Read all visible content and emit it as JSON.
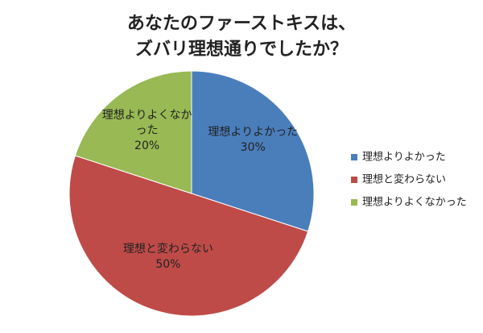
{
  "chart_data": {
    "type": "pie",
    "title": [
      "あなたのファーストキスは、",
      "ズバリ理想通りでしたか？"
    ],
    "categories": [
      "理想よりよかった",
      "理想と変わらない",
      "理想よりよくなかった"
    ],
    "values": [
      30,
      50,
      20
    ],
    "value_labels": [
      "30%",
      "50%",
      "20%"
    ],
    "colors": [
      "#4a7ebb",
      "#be4b48",
      "#98b954"
    ],
    "legend": "right"
  }
}
